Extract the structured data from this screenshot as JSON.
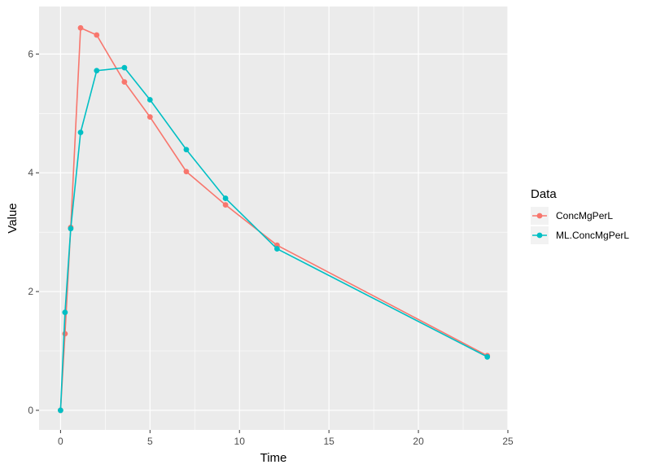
{
  "chart_data": {
    "type": "line",
    "xlabel": "Time",
    "ylabel": "Value",
    "xlim": [
      -1.2,
      25
    ],
    "ylim": [
      -0.33,
      6.8
    ],
    "x_ticks": [
      0,
      5,
      10,
      15,
      20,
      25
    ],
    "y_ticks": [
      0,
      2,
      4,
      6
    ],
    "grid": true,
    "legend": {
      "title": "Data",
      "position": "right"
    },
    "series": [
      {
        "name": "ConcMgPerL",
        "color": "#F8766D",
        "points": [
          [
            0,
            0
          ],
          [
            0.25,
            1.29
          ],
          [
            0.57,
            3.08
          ],
          [
            1.12,
            6.44
          ],
          [
            2.02,
            6.32
          ],
          [
            3.57,
            5.53
          ],
          [
            5.0,
            4.94
          ],
          [
            7.03,
            4.02
          ],
          [
            9.22,
            3.46
          ],
          [
            12.1,
            2.78
          ],
          [
            23.85,
            0.92
          ]
        ]
      },
      {
        "name": "ML.ConcMgPerL",
        "color": "#00BFC4",
        "points": [
          [
            0,
            0
          ],
          [
            0.25,
            1.65
          ],
          [
            0.57,
            3.06
          ],
          [
            1.12,
            4.68
          ],
          [
            2.02,
            5.72
          ],
          [
            3.57,
            5.77
          ],
          [
            5.0,
            5.23
          ],
          [
            7.03,
            4.39
          ],
          [
            9.22,
            3.57
          ],
          [
            12.1,
            2.72
          ],
          [
            23.85,
            0.9
          ]
        ]
      }
    ]
  }
}
